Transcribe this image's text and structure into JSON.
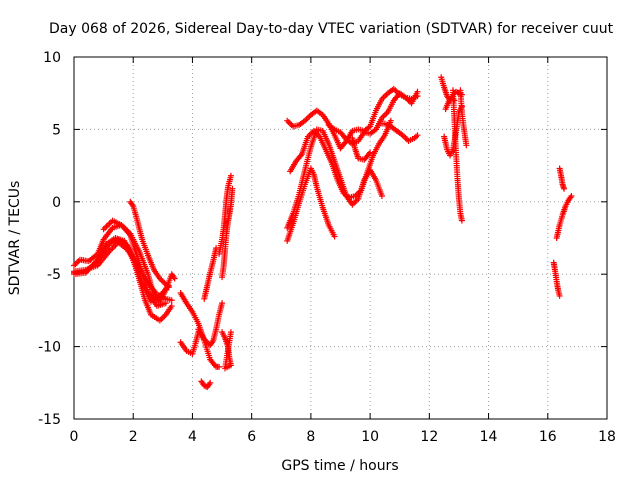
{
  "chart_data": {
    "type": "scatter",
    "title": "Day 068 of 2026, Sidereal Day-to-day VTEC variation (SDTVAR) for receiver cuut",
    "xlabel": "GPS time / hours",
    "ylabel": "SDTVAR / TECUs",
    "xlim": [
      0,
      18
    ],
    "ylim": [
      -15,
      10
    ],
    "xticks": [
      0,
      2,
      4,
      6,
      8,
      10,
      12,
      14,
      16,
      18
    ],
    "yticks": [
      -15,
      -10,
      -5,
      0,
      5,
      10
    ],
    "grid": true,
    "marker": "+",
    "color": "#ff0000",
    "tracks": [
      {
        "name": "trace-01",
        "points": [
          [
            0.0,
            -4.8
          ],
          [
            0.4,
            -4.7
          ],
          [
            0.8,
            -4.4
          ],
          [
            1.2,
            -3.4
          ],
          [
            1.5,
            -2.8
          ],
          [
            1.8,
            -3.3
          ],
          [
            2.1,
            -4.2
          ],
          [
            2.4,
            -5.3
          ],
          [
            2.8,
            -6.4
          ],
          [
            3.1,
            -6.7
          ],
          [
            3.3,
            -6.8
          ]
        ]
      },
      {
        "name": "trace-02",
        "points": [
          [
            0.0,
            -4.9
          ],
          [
            0.4,
            -4.8
          ],
          [
            0.8,
            -4.1
          ],
          [
            1.1,
            -2.9
          ],
          [
            1.4,
            -2.5
          ],
          [
            1.7,
            -2.7
          ],
          [
            2.0,
            -3.8
          ],
          [
            2.3,
            -5.6
          ],
          [
            2.6,
            -6.9
          ],
          [
            2.9,
            -6.5
          ],
          [
            3.2,
            -5.8
          ]
        ]
      },
      {
        "name": "trace-03",
        "points": [
          [
            0.0,
            -4.4
          ],
          [
            0.2,
            -4.0
          ],
          [
            0.5,
            -4.1
          ],
          [
            0.8,
            -3.6
          ],
          [
            1.0,
            -2.6
          ],
          [
            1.3,
            -1.8
          ],
          [
            1.6,
            -1.6
          ],
          [
            1.9,
            -2.3
          ],
          [
            2.2,
            -4.2
          ],
          [
            2.5,
            -6.2
          ],
          [
            2.8,
            -7.2
          ],
          [
            3.1,
            -7.0
          ]
        ]
      },
      {
        "name": "trace-04",
        "points": [
          [
            0.0,
            -5.0
          ],
          [
            0.4,
            -4.9
          ],
          [
            0.8,
            -4.0
          ],
          [
            1.2,
            -2.9
          ],
          [
            1.5,
            -2.6
          ],
          [
            1.8,
            -3.0
          ],
          [
            2.1,
            -4.6
          ],
          [
            2.4,
            -6.8
          ],
          [
            2.6,
            -7.8
          ],
          [
            2.9,
            -8.2
          ],
          [
            3.1,
            -7.8
          ],
          [
            3.3,
            -7.2
          ]
        ]
      },
      {
        "name": "trace-05",
        "points": [
          [
            1.0,
            -1.9
          ],
          [
            1.3,
            -1.3
          ],
          [
            1.6,
            -1.6
          ],
          [
            1.9,
            -2.2
          ],
          [
            2.2,
            -3.4
          ],
          [
            2.5,
            -5.0
          ],
          [
            2.7,
            -6.5
          ],
          [
            2.9,
            -6.9
          ],
          [
            3.1,
            -6.1
          ],
          [
            3.3,
            -5.0
          ],
          [
            3.4,
            -5.3
          ]
        ]
      },
      {
        "name": "trace-06",
        "points": [
          [
            1.9,
            0.0
          ],
          [
            2.0,
            -0.3
          ],
          [
            2.1,
            -1.0
          ],
          [
            2.2,
            -1.8
          ],
          [
            2.3,
            -2.6
          ],
          [
            2.5,
            -3.7
          ],
          [
            2.7,
            -4.7
          ],
          [
            2.9,
            -5.3
          ],
          [
            3.1,
            -5.7
          ],
          [
            3.2,
            -5.9
          ]
        ]
      },
      {
        "name": "trace-07",
        "points": [
          [
            3.6,
            -6.3
          ],
          [
            3.8,
            -7.0
          ],
          [
            4.0,
            -7.6
          ],
          [
            4.2,
            -8.4
          ],
          [
            4.4,
            -9.6
          ],
          [
            4.6,
            -10.9
          ],
          [
            4.8,
            -11.4
          ],
          [
            4.9,
            -11.4
          ]
        ]
      },
      {
        "name": "trace-08",
        "points": [
          [
            3.6,
            -9.7
          ],
          [
            3.8,
            -10.3
          ],
          [
            4.0,
            -10.5
          ],
          [
            4.1,
            -9.8
          ],
          [
            4.2,
            -9.0
          ]
        ]
      },
      {
        "name": "trace-09",
        "points": [
          [
            4.2,
            -8.8
          ],
          [
            4.4,
            -9.5
          ],
          [
            4.6,
            -9.9
          ],
          [
            4.7,
            -9.6
          ],
          [
            4.8,
            -8.8
          ],
          [
            4.9,
            -7.8
          ],
          [
            5.0,
            -7.0
          ]
        ]
      },
      {
        "name": "trace-10",
        "points": [
          [
            4.4,
            -6.7
          ],
          [
            4.5,
            -5.8
          ],
          [
            4.6,
            -4.9
          ],
          [
            4.7,
            -4.1
          ],
          [
            4.8,
            -3.2
          ]
        ]
      },
      {
        "name": "trace-11",
        "points": [
          [
            4.9,
            -3.6
          ],
          [
            5.0,
            -2.6
          ],
          [
            5.05,
            -1.9
          ],
          [
            5.1,
            -0.9
          ],
          [
            5.15,
            0.2
          ],
          [
            5.2,
            1.0
          ],
          [
            5.3,
            1.8
          ]
        ]
      },
      {
        "name": "trace-12",
        "points": [
          [
            5.0,
            -5.2
          ],
          [
            5.05,
            -4.5
          ],
          [
            5.1,
            -3.4
          ],
          [
            5.15,
            -2.2
          ],
          [
            5.2,
            -1.4
          ],
          [
            5.25,
            -0.8
          ],
          [
            5.3,
            -0.2
          ],
          [
            5.35,
            0.9
          ]
        ]
      },
      {
        "name": "trace-13",
        "points": [
          [
            4.3,
            -12.4
          ],
          [
            4.4,
            -12.7
          ],
          [
            4.5,
            -12.8
          ],
          [
            4.6,
            -12.5
          ]
        ]
      },
      {
        "name": "trace-14",
        "points": [
          [
            5.0,
            -9.0
          ],
          [
            5.1,
            -9.4
          ],
          [
            5.2,
            -10.0
          ],
          [
            5.25,
            -10.8
          ],
          [
            5.3,
            -11.3
          ],
          [
            5.1,
            -11.5
          ],
          [
            5.3,
            -9.0
          ]
        ]
      },
      {
        "name": "trace-15",
        "points": [
          [
            7.2,
            5.6
          ],
          [
            7.4,
            5.2
          ],
          [
            7.6,
            5.3
          ],
          [
            7.8,
            5.6
          ],
          [
            8.0,
            6.0
          ],
          [
            8.2,
            6.3
          ],
          [
            8.4,
            6.0
          ],
          [
            8.6,
            5.4
          ],
          [
            8.8,
            4.6
          ],
          [
            9.0,
            3.7
          ]
        ]
      },
      {
        "name": "trace-16",
        "points": [
          [
            7.2,
            -1.8
          ],
          [
            7.4,
            -0.8
          ],
          [
            7.6,
            0.5
          ],
          [
            7.8,
            2.2
          ],
          [
            8.0,
            3.8
          ],
          [
            8.2,
            5.0
          ],
          [
            8.4,
            4.9
          ],
          [
            8.6,
            4.0
          ],
          [
            8.8,
            2.8
          ],
          [
            9.0,
            1.6
          ],
          [
            9.2,
            0.4
          ],
          [
            9.4,
            -0.2
          ],
          [
            9.6,
            0.2
          ],
          [
            9.8,
            1.5
          ],
          [
            10.0,
            2.2
          ],
          [
            10.2,
            1.5
          ],
          [
            10.4,
            0.4
          ]
        ]
      },
      {
        "name": "trace-17",
        "points": [
          [
            7.2,
            -2.7
          ],
          [
            7.4,
            -1.5
          ],
          [
            7.6,
            -0.1
          ],
          [
            7.8,
            1.2
          ],
          [
            8.0,
            2.3
          ],
          [
            8.1,
            1.9
          ],
          [
            8.2,
            1.0
          ],
          [
            8.4,
            -0.4
          ],
          [
            8.6,
            -1.6
          ],
          [
            8.8,
            -2.4
          ]
        ]
      },
      {
        "name": "trace-18",
        "points": [
          [
            7.3,
            2.1
          ],
          [
            7.5,
            2.8
          ],
          [
            7.7,
            3.3
          ],
          [
            7.9,
            4.5
          ],
          [
            8.1,
            4.9
          ],
          [
            8.3,
            4.5
          ],
          [
            8.5,
            3.6
          ],
          [
            8.7,
            2.7
          ],
          [
            8.9,
            1.5
          ],
          [
            9.1,
            0.6
          ],
          [
            9.3,
            0.3
          ],
          [
            9.5,
            0.4
          ],
          [
            9.7,
            0.8
          ],
          [
            9.9,
            2.0
          ],
          [
            10.1,
            3.2
          ],
          [
            10.3,
            4.0
          ],
          [
            10.5,
            4.6
          ],
          [
            10.7,
            5.6
          ]
        ]
      },
      {
        "name": "trace-19",
        "points": [
          [
            8.6,
            5.3
          ],
          [
            8.8,
            5.0
          ],
          [
            9.0,
            4.8
          ],
          [
            9.2,
            4.3
          ],
          [
            9.4,
            4.0
          ],
          [
            9.6,
            4.2
          ],
          [
            9.8,
            4.8
          ],
          [
            10.0,
            4.7
          ],
          [
            10.2,
            5.0
          ],
          [
            10.4,
            5.8
          ],
          [
            10.6,
            6.2
          ],
          [
            10.8,
            7.0
          ],
          [
            11.0,
            7.5
          ],
          [
            11.2,
            7.2
          ],
          [
            11.4,
            6.8
          ],
          [
            11.6,
            7.6
          ]
        ]
      },
      {
        "name": "trace-20",
        "points": [
          [
            9.0,
            3.7
          ],
          [
            9.2,
            4.2
          ],
          [
            9.4,
            4.9
          ],
          [
            9.6,
            5.0
          ],
          [
            9.8,
            4.9
          ],
          [
            10.0,
            5.2
          ],
          [
            10.2,
            6.3
          ],
          [
            10.4,
            7.1
          ],
          [
            10.6,
            7.5
          ],
          [
            10.8,
            7.8
          ],
          [
            11.0,
            7.4
          ],
          [
            11.2,
            7.2
          ],
          [
            11.4,
            7.1
          ],
          [
            11.6,
            7.3
          ]
        ]
      },
      {
        "name": "trace-21",
        "points": [
          [
            10.3,
            5.4
          ],
          [
            10.5,
            5.4
          ],
          [
            10.7,
            5.2
          ],
          [
            10.9,
            4.9
          ],
          [
            11.1,
            4.6
          ],
          [
            11.3,
            4.2
          ],
          [
            11.5,
            4.4
          ],
          [
            11.6,
            4.6
          ]
        ]
      },
      {
        "name": "trace-22",
        "points": [
          [
            9.4,
            4.4
          ],
          [
            9.5,
            3.6
          ],
          [
            9.6,
            3.0
          ],
          [
            9.8,
            2.9
          ],
          [
            10.0,
            3.4
          ]
        ]
      },
      {
        "name": "trace-23",
        "points": [
          [
            12.4,
            8.6
          ],
          [
            12.5,
            7.9
          ],
          [
            12.6,
            7.3
          ],
          [
            12.7,
            7.0
          ],
          [
            12.8,
            7.4
          ],
          [
            12.9,
            7.6
          ],
          [
            13.0,
            7.5
          ],
          [
            13.1,
            7.4
          ]
        ]
      },
      {
        "name": "trace-24",
        "points": [
          [
            12.5,
            4.5
          ],
          [
            12.6,
            3.6
          ],
          [
            12.7,
            3.2
          ],
          [
            12.8,
            3.6
          ],
          [
            12.9,
            4.8
          ],
          [
            13.0,
            6.2
          ],
          [
            13.1,
            6.6
          ]
        ]
      },
      {
        "name": "trace-25",
        "points": [
          [
            12.8,
            7.7
          ],
          [
            12.85,
            5.5
          ],
          [
            12.9,
            3.4
          ],
          [
            12.95,
            1.6
          ],
          [
            13.0,
            0.2
          ],
          [
            13.05,
            -0.8
          ],
          [
            13.1,
            -1.3
          ]
        ]
      },
      {
        "name": "trace-26",
        "points": [
          [
            13.05,
            7.7
          ],
          [
            13.1,
            6.2
          ],
          [
            13.15,
            5.3
          ],
          [
            13.2,
            4.6
          ],
          [
            13.25,
            3.9
          ]
        ]
      },
      {
        "name": "trace-27",
        "points": [
          [
            12.55,
            6.4
          ],
          [
            12.65,
            6.9
          ],
          [
            12.75,
            7.2
          ],
          [
            12.85,
            7.0
          ]
        ]
      },
      {
        "name": "trace-28",
        "points": [
          [
            16.2,
            -4.2
          ],
          [
            16.25,
            -4.8
          ],
          [
            16.3,
            -5.5
          ],
          [
            16.35,
            -6.1
          ],
          [
            16.4,
            -6.5
          ]
        ]
      },
      {
        "name": "trace-29",
        "points": [
          [
            16.3,
            -2.5
          ],
          [
            16.4,
            -1.6
          ],
          [
            16.5,
            -0.9
          ],
          [
            16.6,
            -0.3
          ],
          [
            16.7,
            0.1
          ],
          [
            16.8,
            0.4
          ]
        ]
      },
      {
        "name": "trace-30",
        "points": [
          [
            16.4,
            2.3
          ],
          [
            16.45,
            1.8
          ],
          [
            16.5,
            1.2
          ],
          [
            16.55,
            0.9
          ]
        ]
      }
    ]
  }
}
